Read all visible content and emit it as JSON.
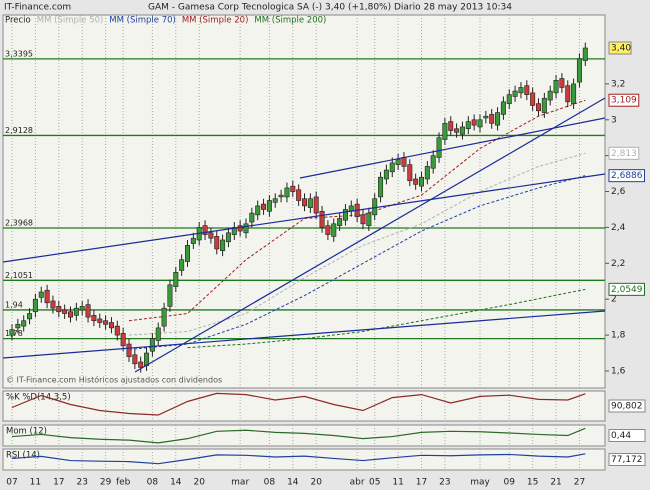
{
  "chart_data": [
    {
      "type": "candlestick",
      "brand": "IT-Finance.com",
      "title": "GAM - Gamesa Corp Tecnologica SA (-)   3,40 (+1,80%)   Diario  28 may 2013 10:34",
      "price_label": "Precio",
      "footer": "© IT-Finance.com   Históricos ajustados con dividendos",
      "categories": [
        "07",
        null,
        null,
        null,
        "11",
        null,
        null,
        null,
        "17",
        null,
        null,
        null,
        "23",
        null,
        null,
        null,
        "29",
        null,
        null,
        "feb",
        null,
        null,
        null,
        null,
        "08",
        null,
        null,
        null,
        "14",
        null,
        null,
        null,
        "20",
        null,
        null,
        null,
        null,
        null,
        null,
        "mar",
        null,
        null,
        null,
        null,
        "08",
        null,
        null,
        null,
        "14",
        null,
        null,
        null,
        "20",
        null,
        null,
        null,
        null,
        null,
        null,
        "abr",
        null,
        null,
        "05",
        null,
        null,
        null,
        "11",
        null,
        null,
        null,
        "17",
        null,
        null,
        null,
        "23",
        null,
        null,
        null,
        null,
        null,
        "may",
        null,
        null,
        null,
        null,
        "09",
        null,
        null,
        null,
        "15",
        null,
        null,
        null,
        "21",
        null,
        null,
        null,
        "27",
        null
      ],
      "open": [
        1.8,
        1.84,
        1.85,
        1.89,
        1.93,
        2.01,
        2.05,
        1.99,
        1.96,
        1.94,
        1.93,
        1.91,
        1.94,
        1.97,
        1.91,
        1.89,
        1.88,
        1.87,
        1.85,
        1.81,
        1.75,
        1.69,
        1.65,
        1.63,
        1.71,
        1.77,
        1.85,
        1.96,
        2.07,
        2.16,
        2.21,
        2.31,
        2.33,
        2.41,
        2.37,
        2.35,
        2.27,
        2.32,
        2.36,
        2.41,
        2.37,
        2.43,
        2.47,
        2.53,
        2.49,
        2.54,
        2.57,
        2.57,
        2.63,
        2.61,
        2.56,
        2.51,
        2.57,
        2.49,
        2.41,
        2.35,
        2.41,
        2.44,
        2.49,
        2.53,
        2.47,
        2.41,
        2.47,
        2.57,
        2.67,
        2.71,
        2.75,
        2.79,
        2.75,
        2.67,
        2.63,
        2.67,
        2.73,
        2.79,
        2.89,
        2.99,
        2.95,
        2.92,
        2.95,
        3.0,
        2.96,
        3.01,
        3.03,
        2.97,
        3.03,
        3.09,
        3.13,
        3.15,
        3.19,
        3.15,
        3.09,
        3.04,
        3.11,
        3.15,
        3.23,
        3.19,
        3.09,
        3.21,
        3.33
      ],
      "high": [
        1.86,
        1.89,
        1.91,
        1.95,
        2.03,
        2.07,
        2.08,
        2.02,
        1.99,
        1.97,
        1.96,
        1.98,
        1.99,
        2.0,
        1.94,
        1.92,
        1.91,
        1.9,
        1.88,
        1.84,
        1.78,
        1.72,
        1.68,
        1.73,
        1.81,
        1.87,
        1.98,
        2.11,
        2.18,
        2.25,
        2.33,
        2.37,
        2.43,
        2.44,
        2.4,
        2.38,
        2.36,
        2.4,
        2.43,
        2.44,
        2.45,
        2.51,
        2.55,
        2.56,
        2.58,
        2.59,
        2.61,
        2.65,
        2.66,
        2.64,
        2.59,
        2.59,
        2.6,
        2.52,
        2.44,
        2.45,
        2.48,
        2.53,
        2.55,
        2.56,
        2.5,
        2.51,
        2.59,
        2.71,
        2.75,
        2.79,
        2.81,
        2.82,
        2.78,
        2.7,
        2.71,
        2.77,
        2.83,
        2.93,
        3.01,
        3.02,
        2.98,
        2.99,
        3.02,
        3.03,
        3.03,
        3.05,
        3.06,
        3.07,
        3.13,
        3.17,
        3.19,
        3.21,
        3.22,
        3.18,
        3.12,
        3.15,
        3.19,
        3.25,
        3.26,
        3.22,
        3.23,
        3.37,
        3.43
      ],
      "low": [
        1.77,
        1.81,
        1.82,
        1.86,
        1.9,
        1.98,
        1.95,
        1.92,
        1.9,
        1.89,
        1.87,
        1.88,
        1.91,
        1.87,
        1.85,
        1.84,
        1.83,
        1.81,
        1.77,
        1.71,
        1.65,
        1.61,
        1.59,
        1.6,
        1.68,
        1.74,
        1.82,
        1.93,
        2.04,
        2.13,
        2.18,
        2.28,
        2.3,
        2.33,
        2.31,
        2.25,
        2.24,
        2.29,
        2.33,
        2.35,
        2.34,
        2.4,
        2.44,
        2.47,
        2.46,
        2.51,
        2.54,
        2.54,
        2.57,
        2.52,
        2.49,
        2.48,
        2.45,
        2.37,
        2.33,
        2.32,
        2.38,
        2.41,
        2.46,
        2.43,
        2.39,
        2.38,
        2.44,
        2.54,
        2.64,
        2.68,
        2.72,
        2.71,
        2.63,
        2.61,
        2.6,
        2.64,
        2.7,
        2.76,
        2.86,
        2.91,
        2.9,
        2.89,
        2.92,
        2.94,
        2.93,
        2.98,
        2.95,
        2.94,
        3.0,
        3.06,
        3.1,
        3.12,
        3.11,
        3.05,
        3.02,
        3.01,
        3.08,
        3.12,
        3.15,
        3.07,
        3.06,
        3.18,
        3.3
      ],
      "close": [
        1.83,
        1.86,
        1.88,
        1.92,
        2.0,
        2.04,
        1.98,
        1.95,
        1.93,
        1.92,
        1.9,
        1.95,
        1.96,
        1.9,
        1.88,
        1.87,
        1.86,
        1.84,
        1.8,
        1.74,
        1.68,
        1.64,
        1.62,
        1.7,
        1.78,
        1.84,
        1.95,
        2.08,
        2.15,
        2.22,
        2.3,
        2.34,
        2.4,
        2.36,
        2.34,
        2.28,
        2.33,
        2.37,
        2.4,
        2.38,
        2.42,
        2.48,
        2.52,
        2.5,
        2.55,
        2.56,
        2.58,
        2.62,
        2.6,
        2.55,
        2.52,
        2.56,
        2.48,
        2.4,
        2.36,
        2.42,
        2.45,
        2.5,
        2.52,
        2.46,
        2.42,
        2.48,
        2.56,
        2.68,
        2.72,
        2.76,
        2.78,
        2.74,
        2.66,
        2.64,
        2.68,
        2.74,
        2.8,
        2.9,
        2.98,
        2.94,
        2.93,
        2.96,
        2.99,
        2.97,
        3.0,
        3.02,
        2.98,
        3.04,
        3.1,
        3.14,
        3.16,
        3.18,
        3.14,
        3.08,
        3.05,
        3.12,
        3.16,
        3.22,
        3.18,
        3.1,
        3.2,
        3.34,
        3.4
      ],
      "last_label": "3,40",
      "up_color": "#3a9a3a",
      "down_color": "#c83c3c",
      "ylim": [
        1.505,
        3.584
      ],
      "yticks": [
        {
          "value": 1.6,
          "label": "1,6"
        },
        {
          "value": 1.8,
          "label": "1,8"
        },
        2,
        {
          "value": 2.2,
          "label": "2,2"
        },
        {
          "value": 2.4,
          "label": "2,4"
        },
        {
          "value": 2.6,
          "label": "2,6"
        },
        {
          "value": 2.8,
          "label": "2,8"
        },
        3,
        {
          "value": 3.2,
          "label": "3,2"
        }
      ],
      "levels": [
        {
          "value": 3.3395,
          "label": "3,3395"
        },
        {
          "value": 2.9128,
          "label": "2,9128"
        },
        {
          "value": 2.3968,
          "label": "2,3968"
        },
        {
          "value": 2.1051,
          "label": "2,1051"
        },
        {
          "value": 1.94,
          "label": "1,94"
        },
        {
          "value": 1.78,
          "label": "1,78"
        }
      ],
      "level_color": "#1f7a1f",
      "series": [
        {
          "name": "MM (Simple 50)",
          "color": "#b0b0b0",
          "x": [
            20,
            30,
            40,
            50,
            60,
            70,
            80,
            90,
            98
          ],
          "values": [
            1.8,
            1.82,
            1.92,
            2.12,
            2.3,
            2.42,
            2.6,
            2.74,
            2.813
          ],
          "last_label": "2,813"
        },
        {
          "name": "MM (Simple 70)",
          "color": "#2040a0",
          "x": [
            20,
            30,
            40,
            50,
            60,
            70,
            80,
            90,
            98
          ],
          "values": [
            1.72,
            1.75,
            1.86,
            2.02,
            2.2,
            2.38,
            2.52,
            2.62,
            2.6886
          ],
          "last_label": "2,6886"
        },
        {
          "name": "MM (Simple 20)",
          "color": "#a02020",
          "x": [
            20,
            30,
            40,
            50,
            60,
            70,
            80,
            90,
            98
          ],
          "values": [
            1.88,
            1.92,
            2.22,
            2.45,
            2.47,
            2.58,
            2.84,
            3.02,
            3.109
          ],
          "last_label": "3,109"
        },
        {
          "name": "MM (Simple 200)",
          "color": "#207020",
          "x": [
            30,
            40,
            50,
            60,
            70,
            85,
            98
          ],
          "values": [
            1.73,
            1.75,
            1.78,
            1.82,
            1.88,
            1.97,
            2.0549
          ],
          "last_label": "2,0549"
        }
      ]
    },
    {
      "type": "line",
      "title": "%K %D(14,3,5)",
      "color": "#8a2a2a",
      "x": [
        0,
        5,
        10,
        15,
        20,
        25,
        30,
        35,
        40,
        45,
        50,
        55,
        60,
        65,
        70,
        75,
        80,
        85,
        90,
        95,
        98
      ],
      "values": [
        45,
        85,
        55,
        35,
        25,
        20,
        65,
        92,
        88,
        70,
        82,
        55,
        35,
        78,
        88,
        60,
        82,
        86,
        72,
        70,
        90.802
      ],
      "value_labels": [
        null,
        null,
        null,
        null,
        null,
        null,
        null,
        null,
        null,
        null,
        null,
        null,
        null,
        null,
        null,
        null,
        null,
        null,
        null,
        null,
        "90,802"
      ],
      "ylim": [
        0,
        100
      ]
    },
    {
      "type": "line",
      "title": "Mom (12)",
      "color": "#2a6a2a",
      "x": [
        0,
        5,
        10,
        15,
        20,
        25,
        30,
        35,
        40,
        45,
        50,
        55,
        60,
        65,
        70,
        75,
        80,
        85,
        90,
        95,
        98
      ],
      "values": [
        0.05,
        0.15,
        0.0,
        -0.08,
        -0.12,
        -0.25,
        -0.05,
        0.3,
        0.35,
        0.25,
        0.2,
        0.1,
        -0.05,
        0.05,
        0.25,
        0.3,
        0.28,
        0.22,
        0.15,
        0.1,
        0.44
      ],
      "value_labels": [
        null,
        null,
        null,
        null,
        null,
        null,
        null,
        null,
        null,
        null,
        null,
        null,
        null,
        null,
        null,
        null,
        null,
        null,
        null,
        null,
        "0,44"
      ],
      "ylim": [
        -0.4,
        0.6
      ]
    },
    {
      "type": "line",
      "title": "RSI (14)",
      "color": "#2040a0",
      "x": [
        0,
        5,
        10,
        15,
        20,
        25,
        30,
        35,
        40,
        45,
        50,
        55,
        60,
        65,
        70,
        75,
        80,
        85,
        90,
        95,
        98
      ],
      "values": [
        55,
        65,
        45,
        42,
        40,
        30,
        50,
        72,
        70,
        62,
        66,
        55,
        45,
        58,
        70,
        68,
        72,
        74,
        66,
        62,
        77.172
      ],
      "value_labels": [
        null,
        null,
        null,
        null,
        null,
        null,
        null,
        null,
        null,
        null,
        null,
        null,
        null,
        null,
        null,
        null,
        null,
        null,
        null,
        null,
        "77,172"
      ],
      "ylim": [
        0,
        100
      ]
    }
  ]
}
